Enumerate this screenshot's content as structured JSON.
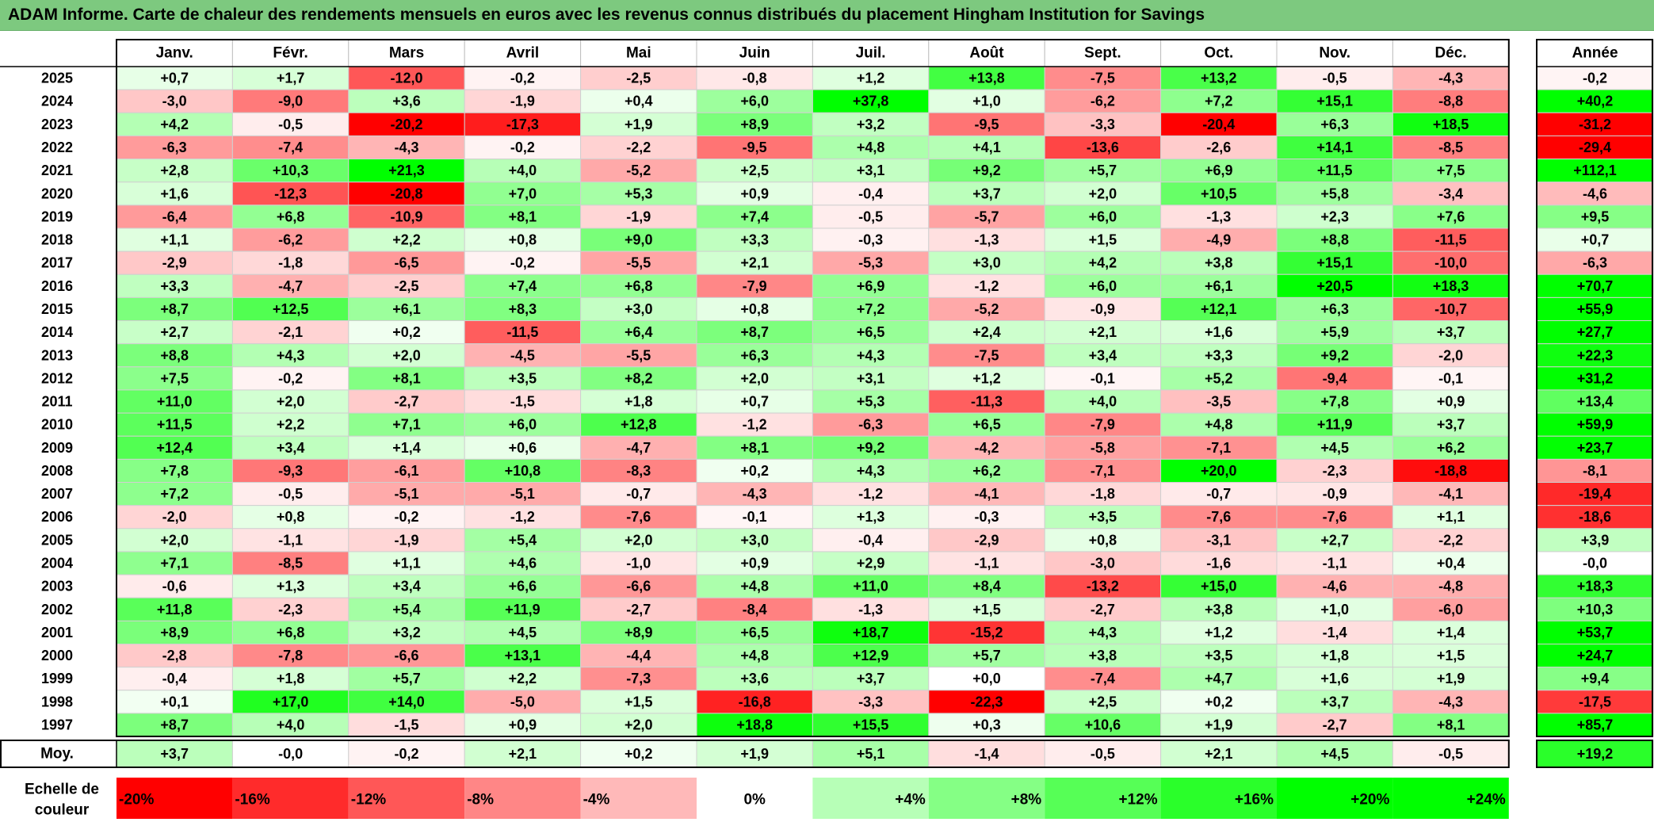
{
  "report": {
    "title": "ADAM Informe. Carte de chaleur des rendements mensuels en euros avec les revenus connus distribués du placement Hingham Institution for Savings"
  },
  "colors": {
    "header_bar": "#7dc97f",
    "strong_negative": "#ff0000",
    "neutral": "#ffffff",
    "strong_positive": "#00ff00"
  },
  "chart_data": {
    "type": "heatmap",
    "columns": [
      "Janv.",
      "Févr.",
      "Mars",
      "Avril",
      "Mai",
      "Juin",
      "Juil.",
      "Août",
      "Sept.",
      "Oct.",
      "Nov.",
      "Déc."
    ],
    "year_column_label": "Année",
    "rows": [
      {
        "year": "2025",
        "values": [
          "+0,7",
          "+1,7",
          "-12,0",
          "-0,2",
          "-2,5",
          "-0,8",
          "+1,2",
          "+13,8",
          "-7,5",
          "+13,2",
          "-0,5",
          "-4,3"
        ],
        "annual": "-0,2"
      },
      {
        "year": "2024",
        "values": [
          "-3,0",
          "-9,0",
          "+3,6",
          "-1,9",
          "+0,4",
          "+6,0",
          "+37,8",
          "+1,0",
          "-6,2",
          "+7,2",
          "+15,1",
          "-8,8"
        ],
        "annual": "+40,2"
      },
      {
        "year": "2023",
        "values": [
          "+4,2",
          "-0,5",
          "-20,2",
          "-17,3",
          "+1,9",
          "+8,9",
          "+3,2",
          "-9,5",
          "-3,3",
          "-20,4",
          "+6,3",
          "+18,5"
        ],
        "annual": "-31,2"
      },
      {
        "year": "2022",
        "values": [
          "-6,3",
          "-7,4",
          "-4,3",
          "-0,2",
          "-2,2",
          "-9,5",
          "+4,8",
          "+4,1",
          "-13,6",
          "-2,6",
          "+14,1",
          "-8,5"
        ],
        "annual": "-29,4"
      },
      {
        "year": "2021",
        "values": [
          "+2,8",
          "+10,3",
          "+21,3",
          "+4,0",
          "-5,2",
          "+2,5",
          "+3,1",
          "+9,2",
          "+5,7",
          "+6,9",
          "+11,5",
          "+7,5"
        ],
        "annual": "+112,1"
      },
      {
        "year": "2020",
        "values": [
          "+1,6",
          "-12,3",
          "-20,8",
          "+7,0",
          "+5,3",
          "+0,9",
          "-0,4",
          "+3,7",
          "+2,0",
          "+10,5",
          "+5,8",
          "-3,4"
        ],
        "annual": "-4,6"
      },
      {
        "year": "2019",
        "values": [
          "-6,4",
          "+6,8",
          "-10,9",
          "+8,1",
          "-1,9",
          "+7,4",
          "-0,5",
          "-5,7",
          "+6,0",
          "-1,3",
          "+2,3",
          "+7,6"
        ],
        "annual": "+9,5"
      },
      {
        "year": "2018",
        "values": [
          "+1,1",
          "-6,2",
          "+2,2",
          "+0,8",
          "+9,0",
          "+3,3",
          "-0,3",
          "-1,3",
          "+1,5",
          "-4,9",
          "+8,8",
          "-11,5"
        ],
        "annual": "+0,7"
      },
      {
        "year": "2017",
        "values": [
          "-2,9",
          "-1,8",
          "-6,5",
          "-0,2",
          "-5,5",
          "+2,1",
          "-5,3",
          "+3,0",
          "+4,2",
          "+3,8",
          "+15,1",
          "-10,0"
        ],
        "annual": "-6,3"
      },
      {
        "year": "2016",
        "values": [
          "+3,3",
          "-4,7",
          "-2,5",
          "+7,4",
          "+6,8",
          "-7,9",
          "+6,9",
          "-1,2",
          "+6,0",
          "+6,1",
          "+20,5",
          "+18,3"
        ],
        "annual": "+70,7"
      },
      {
        "year": "2015",
        "values": [
          "+8,7",
          "+12,5",
          "+6,1",
          "+8,3",
          "+3,0",
          "+0,8",
          "+7,2",
          "-5,2",
          "-0,9",
          "+12,1",
          "+6,3",
          "-10,7"
        ],
        "annual": "+55,9"
      },
      {
        "year": "2014",
        "values": [
          "+2,7",
          "-2,1",
          "+0,2",
          "-11,5",
          "+6,4",
          "+8,7",
          "+6,5",
          "+2,4",
          "+2,1",
          "+1,6",
          "+5,9",
          "+3,7"
        ],
        "annual": "+27,7"
      },
      {
        "year": "2013",
        "values": [
          "+8,8",
          "+4,3",
          "+2,0",
          "-4,5",
          "-5,5",
          "+6,3",
          "+4,3",
          "-7,5",
          "+3,4",
          "+3,3",
          "+9,2",
          "-2,0"
        ],
        "annual": "+22,3"
      },
      {
        "year": "2012",
        "values": [
          "+7,5",
          "-0,2",
          "+8,1",
          "+3,5",
          "+8,2",
          "+2,0",
          "+3,1",
          "+1,2",
          "-0,1",
          "+5,2",
          "-9,4",
          "-0,1"
        ],
        "annual": "+31,2"
      },
      {
        "year": "2011",
        "values": [
          "+11,0",
          "+2,0",
          "-2,7",
          "-1,5",
          "+1,8",
          "+0,7",
          "+5,3",
          "-11,3",
          "+4,0",
          "-3,5",
          "+7,8",
          "+0,9"
        ],
        "annual": "+13,4"
      },
      {
        "year": "2010",
        "values": [
          "+11,5",
          "+2,2",
          "+7,1",
          "+6,0",
          "+12,8",
          "-1,2",
          "-6,3",
          "+6,5",
          "-7,9",
          "+4,8",
          "+11,9",
          "+3,7"
        ],
        "annual": "+59,9"
      },
      {
        "year": "2009",
        "values": [
          "+12,4",
          "+3,4",
          "+1,4",
          "+0,6",
          "-4,7",
          "+8,1",
          "+9,2",
          "-4,2",
          "-5,8",
          "-7,1",
          "+4,5",
          "+6,2"
        ],
        "annual": "+23,7"
      },
      {
        "year": "2008",
        "values": [
          "+7,8",
          "-9,3",
          "-6,1",
          "+10,8",
          "-8,3",
          "+0,2",
          "+4,3",
          "+6,2",
          "-7,1",
          "+20,0",
          "-2,3",
          "-18,8"
        ],
        "annual": "-8,1"
      },
      {
        "year": "2007",
        "values": [
          "+7,2",
          "-0,5",
          "-5,1",
          "-5,1",
          "-0,7",
          "-4,3",
          "-1,2",
          "-4,1",
          "-1,8",
          "-0,7",
          "-0,9",
          "-4,1"
        ],
        "annual": "-19,4"
      },
      {
        "year": "2006",
        "values": [
          "-2,0",
          "+0,8",
          "-0,2",
          "-1,2",
          "-7,6",
          "-0,1",
          "+1,3",
          "-0,3",
          "+3,5",
          "-7,6",
          "-7,6",
          "+1,1"
        ],
        "annual": "-18,6"
      },
      {
        "year": "2005",
        "values": [
          "+2,0",
          "-1,1",
          "-1,9",
          "+5,4",
          "+2,0",
          "+3,0",
          "-0,4",
          "-2,9",
          "+0,8",
          "-3,1",
          "+2,7",
          "-2,2"
        ],
        "annual": "+3,9"
      },
      {
        "year": "2004",
        "values": [
          "+7,1",
          "-8,5",
          "+1,1",
          "+4,6",
          "-1,0",
          "+0,9",
          "+2,9",
          "-1,1",
          "-3,0",
          "-1,6",
          "-1,1",
          "+0,4"
        ],
        "annual": "-0,0"
      },
      {
        "year": "2003",
        "values": [
          "-0,6",
          "+1,3",
          "+3,4",
          "+6,6",
          "-6,6",
          "+4,8",
          "+11,0",
          "+8,4",
          "-13,2",
          "+15,0",
          "-4,6",
          "-4,8"
        ],
        "annual": "+18,3"
      },
      {
        "year": "2002",
        "values": [
          "+11,8",
          "-2,3",
          "+5,4",
          "+11,9",
          "-2,7",
          "-8,4",
          "-1,3",
          "+1,5",
          "-2,7",
          "+3,8",
          "+1,0",
          "-6,0"
        ],
        "annual": "+10,3"
      },
      {
        "year": "2001",
        "values": [
          "+8,9",
          "+6,8",
          "+3,2",
          "+4,5",
          "+8,9",
          "+6,5",
          "+18,7",
          "-15,2",
          "+4,3",
          "+1,2",
          "-1,4",
          "+1,4"
        ],
        "annual": "+53,7"
      },
      {
        "year": "2000",
        "values": [
          "-2,8",
          "-7,8",
          "-6,6",
          "+13,1",
          "-4,4",
          "+4,8",
          "+12,9",
          "+5,7",
          "+3,8",
          "+3,5",
          "+1,8",
          "+1,5"
        ],
        "annual": "+24,7"
      },
      {
        "year": "1999",
        "values": [
          "-0,4",
          "+1,8",
          "+5,7",
          "+2,2",
          "-7,3",
          "+3,6",
          "+3,7",
          "+0,0",
          "-7,4",
          "+4,7",
          "+1,6",
          "+1,9"
        ],
        "annual": "+9,4"
      },
      {
        "year": "1998",
        "values": [
          "+0,1",
          "+17,0",
          "+14,0",
          "-5,0",
          "+1,5",
          "-16,8",
          "-3,3",
          "-22,3",
          "+2,5",
          "+0,2",
          "+3,7",
          "-4,3"
        ],
        "annual": "-17,5"
      },
      {
        "year": "1997",
        "values": [
          "+8,7",
          "+4,0",
          "-1,5",
          "+0,9",
          "+2,0",
          "+18,8",
          "+15,5",
          "+0,3",
          "+10,6",
          "+1,9",
          "-2,7",
          "+8,1"
        ],
        "annual": "+85,7"
      }
    ],
    "average": {
      "label": "Moy.",
      "values": [
        "+3,7",
        "-0,0",
        "-0,2",
        "+2,1",
        "+0,2",
        "+1,9",
        "+5,1",
        "-1,4",
        "-0,5",
        "+2,1",
        "+4,5",
        "-0,5"
      ],
      "annual": "+19,2"
    },
    "scale": {
      "label_line1": "Echelle de",
      "label_line2": "couleur",
      "steps": [
        {
          "label": "-20%",
          "value": -20
        },
        {
          "label": "-16%",
          "value": -16
        },
        {
          "label": "-12%",
          "value": -12
        },
        {
          "label": "-8%",
          "value": -8
        },
        {
          "label": "-4%",
          "value": -4
        },
        {
          "label": "0%",
          "value": 0
        },
        {
          "label": "+4%",
          "value": 4
        },
        {
          "label": "+8%",
          "value": 8
        },
        {
          "label": "+12%",
          "value": 12
        },
        {
          "label": "+16%",
          "value": 16
        },
        {
          "label": "+20%",
          "value": 20
        },
        {
          "label": "+24%",
          "value": 24
        }
      ]
    }
  }
}
